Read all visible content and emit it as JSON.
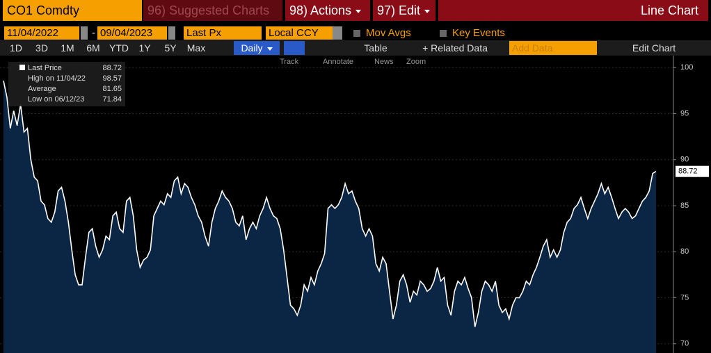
{
  "header": {
    "ticker": "CO1 Comdty",
    "suggested": "96) Suggested Charts",
    "actions": "98) Actions",
    "edit": "97) Edit",
    "chart_kind": "Line Chart"
  },
  "settings": {
    "start_date": "11/04/2022",
    "separator": "-",
    "end_date": "09/04/2023",
    "field": "Last Px",
    "currency": "Local CCY",
    "mov_avgs": "Mov Avgs",
    "key_events": "Key Events"
  },
  "toolbar": {
    "periods": [
      "1D",
      "3D",
      "1M",
      "6M",
      "YTD",
      "1Y",
      "5Y",
      "Max"
    ],
    "frequency": "Daily",
    "table": "Table",
    "related": "+ Related Data",
    "add_data": "Add Data",
    "edit_chart": "Edit Chart"
  },
  "chart_tools": [
    "Track",
    "Annotate",
    "News",
    "Zoom"
  ],
  "chart_data": {
    "type": "area",
    "ylim": [
      69,
      101.3
    ],
    "yticks": [
      70,
      75,
      80,
      85,
      90,
      95,
      100
    ],
    "grid": true,
    "area_color": "#0b2545",
    "legend": [
      {
        "name": "Last Price",
        "value": 88.72
      },
      {
        "name": "High on 11/04/22",
        "value": 98.57
      },
      {
        "name": "Average",
        "value": 81.65
      },
      {
        "name": "Low on 06/12/23",
        "value": 71.84
      }
    ],
    "series": [
      {
        "name": "Last Price",
        "color": "#ffffff",
        "values": [
          98.57,
          96.8,
          93.4,
          95.3,
          93.7,
          96,
          93,
          93.4,
          90,
          88.1,
          87.7,
          85.5,
          85.1,
          83.6,
          83.2,
          84.3,
          86.6,
          87,
          85.5,
          83.2,
          80.2,
          77.5,
          76.4,
          76.4,
          79.4,
          82.1,
          82.5,
          80.6,
          79.4,
          80.2,
          81.7,
          81.3,
          83.9,
          84.3,
          82.5,
          82.1,
          85.5,
          85.9,
          83.9,
          80.2,
          78.3,
          79.1,
          79.4,
          80.2,
          83.9,
          84.7,
          85.5,
          85.1,
          86.3,
          85.9,
          87.7,
          88.1,
          86.3,
          87.4,
          87,
          85.9,
          85.1,
          83.9,
          83.2,
          81.7,
          80.6,
          83.2,
          84.7,
          85.5,
          86.6,
          85.9,
          85.5,
          84.7,
          83.2,
          82.8,
          83.9,
          81.3,
          82.5,
          83.2,
          82.5,
          83.9,
          84.7,
          85.9,
          84.7,
          83.9,
          83.6,
          82.5,
          80.2,
          77.2,
          74.2,
          73.8,
          73.1,
          74.2,
          76.4,
          75.7,
          77.2,
          76.4,
          77.9,
          78.7,
          79.8,
          84.7,
          85.1,
          84.7,
          85.1,
          85.9,
          87.4,
          86.3,
          86.6,
          85.5,
          84.7,
          82.5,
          81.7,
          82.5,
          81.7,
          78.7,
          77.9,
          79.4,
          78.7,
          75.7,
          72.7,
          74.2,
          76.8,
          77.5,
          76.4,
          74.5,
          75.7,
          75.3,
          76.8,
          76.4,
          75.7,
          76,
          76.8,
          78.3,
          76.8,
          77.2,
          74.2,
          73.1,
          75.7,
          76.8,
          76.4,
          77.2,
          76,
          75,
          71.84,
          73.4,
          75.7,
          76.8,
          76.4,
          75.7,
          76.8,
          74.2,
          73.4,
          73.8,
          72.7,
          74.2,
          75,
          75,
          75.7,
          76.8,
          76.4,
          77.5,
          78.3,
          79.4,
          80.6,
          81.3,
          79.4,
          80.2,
          79.4,
          80.2,
          82.1,
          83.2,
          83.6,
          84.7,
          85.1,
          85.9,
          84.7,
          83.6,
          84.7,
          85.5,
          86.3,
          87.4,
          86.3,
          87,
          85.9,
          84.7,
          83.6,
          84.3,
          84.7,
          84.3,
          83.6,
          83.9,
          84.7,
          85.5,
          85.9,
          86.6,
          88.5,
          88.72
        ]
      }
    ]
  }
}
